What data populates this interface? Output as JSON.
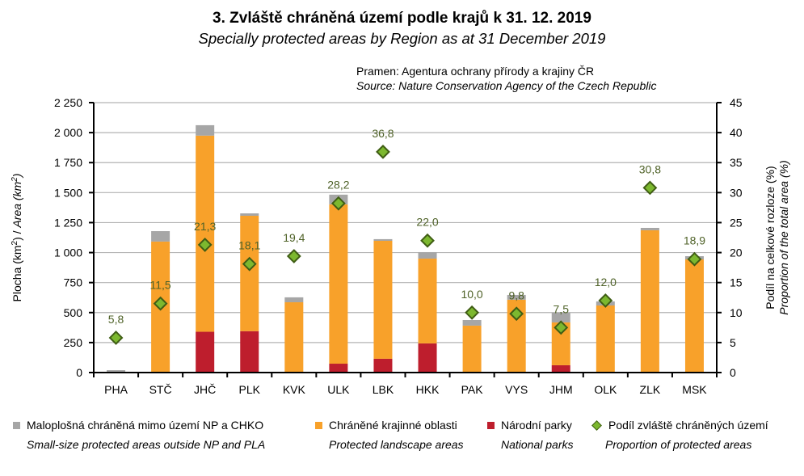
{
  "header": {
    "title": "3. Zvláště chráněná území podle krajů k 31. 12. 2019",
    "subtitle": "Specially protected areas by Region as at 31 December 2019",
    "source_cz": "Pramen: Agentura ochrany přírody a krajiny ČR",
    "source_en": "Source: Nature Conservation Agency of the Czech Republic"
  },
  "colors": {
    "small_size": "#a6a6a6",
    "landscape": "#f8a12a",
    "national_parks": "#be1e2d",
    "proportion_fill": "#7cb82f",
    "proportion_stroke": "#3f5d14",
    "label": "#4f6228",
    "grid": "#b3b3b3"
  },
  "legend": [
    {
      "cz": "Maloplošná chráněná mimo území NP a CHKO",
      "en": "Small-size protected areas outside NP and PLA",
      "key": "small_size"
    },
    {
      "cz": "Chráněné krajinné oblasti",
      "en": "Protected landscape areas",
      "key": "landscape"
    },
    {
      "cz": "Národní parky",
      "en": "National parks",
      "key": "national_parks"
    },
    {
      "cz": "Podíl zvláště chráněných území",
      "en": "Proportion of protected areas",
      "key": "proportion"
    }
  ],
  "chart_data": {
    "type": "bar",
    "stacked": true,
    "title": "3. Zvláště chráněná území podle krajů k 31. 12. 2019",
    "subtitle": "Specially protected areas by Region as at 31 December 2019",
    "categories": [
      "PHA",
      "STČ",
      "JHČ",
      "PLK",
      "KVK",
      "ULK",
      "LBK",
      "HKK",
      "PAK",
      "VYS",
      "JHM",
      "OLK",
      "ZLK",
      "MSK"
    ],
    "series": [
      {
        "name": "Národní parky / National parks",
        "axis": "left",
        "type": "bar",
        "values": [
          0,
          0,
          340,
          345,
          0,
          74,
          115,
          243,
          0,
          0,
          61,
          0,
          0,
          0
        ]
      },
      {
        "name": "Chráněné krajinné oblasti / Protected landscape areas",
        "axis": "left",
        "type": "bar",
        "values": [
          0,
          1092,
          1635,
          962,
          586,
          1328,
          983,
          707,
          391,
          607,
          357,
          559,
          1186,
          943
        ]
      },
      {
        "name": "Maloplošná chráněná mimo území NP a CHKO / Small-size protected areas outside NP and PLA",
        "axis": "left",
        "type": "bar",
        "values": [
          20,
          87,
          87,
          20,
          41,
          81,
          14,
          54,
          47,
          40,
          81,
          34,
          20,
          27
        ]
      },
      {
        "name": "Podíl zvláště chráněných území / Proportion of protected areas",
        "axis": "right",
        "type": "scatter",
        "values": [
          5.8,
          11.5,
          21.3,
          18.1,
          19.4,
          28.2,
          36.8,
          22.0,
          10.0,
          9.8,
          7.5,
          12.0,
          30.8,
          18.9
        ],
        "labels": [
          "5,8",
          "11,5",
          "21,3",
          "18,1",
          "19,4",
          "28,2",
          "36,8",
          "22,0",
          "10,0",
          "9,8",
          "7,5",
          "12,0",
          "30,8",
          "18,9"
        ]
      }
    ],
    "ylabel": "Plocha (km²) / Area (km²)",
    "ylabel_cz": "Plocha (km",
    "ylabel_en": "Area (km",
    "y2label_cz": "Podíl na celkové rozloze (%)",
    "y2label_en": "Proportion of the total area (%)",
    "ylim": [
      0,
      2250
    ],
    "yticks": [
      0,
      250,
      500,
      750,
      1000,
      1250,
      1500,
      1750,
      2000,
      2250
    ],
    "ytick_labels": [
      "0",
      "250",
      "500",
      "750",
      "1 000",
      "1 250",
      "1 500",
      "1 750",
      "2 000",
      "2 250"
    ],
    "y2lim": [
      0,
      45
    ],
    "y2ticks": [
      0,
      5,
      10,
      15,
      20,
      25,
      30,
      35,
      40,
      45
    ],
    "y2tick_labels": [
      "0",
      "5",
      "10",
      "15",
      "20",
      "25",
      "30",
      "35",
      "40",
      "45"
    ],
    "grid": true,
    "legend_position": "bottom"
  }
}
